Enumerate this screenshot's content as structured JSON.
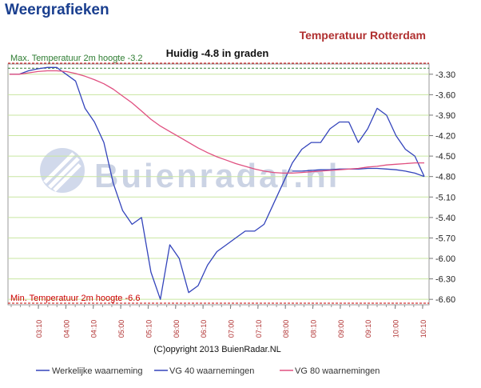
{
  "page": {
    "title": "Weergrafieken"
  },
  "chart_data": {
    "type": "line",
    "title": "Temperatuur Rotterdam",
    "subtitle": "Huidig -4.8 in graden",
    "watermark": "Buienradar.nl",
    "copyright": "(C)opyright 2013 BuienRadar.NL",
    "ylim": [
      -6.6,
      -3.3
    ],
    "yticks": [
      "-3.30",
      "-3.60",
      "-3.90",
      "-4.20",
      "-4.50",
      "-4.80",
      "-5.10",
      "-5.40",
      "-5.70",
      "-6.00",
      "-6.30",
      "-6.60"
    ],
    "xticks": [
      "03:10",
      "04:00",
      "04:10",
      "05:00",
      "05:10",
      "06:00",
      "06:10",
      "07:00",
      "07:10",
      "08:00",
      "08:10",
      "09:00",
      "09:10",
      "10:00",
      "10:10"
    ],
    "max_line": {
      "label": "Max. Temperatuur 2m hoogte -3.2",
      "value": -3.2,
      "color": "#2e7d32"
    },
    "min_line": {
      "label": "Min. Temperatuur 2m hoogte -6.6",
      "value": -6.6,
      "color": "#cc0000"
    },
    "grid": true,
    "legend_position": "bottom",
    "series": [
      {
        "name": "Werkelijke waarneming",
        "color": "#3344bb",
        "values": [
          -3.3,
          -3.3,
          -3.25,
          -3.22,
          -3.2,
          -3.2,
          -3.3,
          -3.4,
          -3.8,
          -4.0,
          -4.3,
          -4.9,
          -5.3,
          -5.5,
          -5.4,
          -6.2,
          -6.6,
          -5.8,
          -6.0,
          -6.5,
          -6.4,
          -6.1,
          -5.9,
          -5.8,
          -5.7,
          -5.6,
          -5.6,
          -5.5,
          -5.2,
          -4.9,
          -4.6,
          -4.4,
          -4.3,
          -4.3,
          -4.1,
          -4.0,
          -4.0,
          -4.3,
          -4.1,
          -3.8,
          -3.9,
          -4.2,
          -4.4,
          -4.5,
          -4.8
        ]
      },
      {
        "name": "VG 40 waarnemingen",
        "color": "#3344bb",
        "values": [
          null,
          null,
          null,
          null,
          null,
          null,
          null,
          null,
          null,
          null,
          null,
          null,
          null,
          null,
          null,
          null,
          null,
          null,
          null,
          null,
          null,
          null,
          null,
          null,
          null,
          null,
          null,
          null,
          null,
          null,
          -4.72,
          -4.72,
          -4.71,
          -4.7,
          -4.7,
          -4.69,
          -4.69,
          -4.69,
          -4.68,
          -4.68,
          -4.69,
          -4.7,
          -4.72,
          -4.75,
          -4.8
        ]
      },
      {
        "name": "VG 80 waarnemingen",
        "color": "#e05080",
        "values": [
          -3.3,
          -3.3,
          -3.28,
          -3.26,
          -3.25,
          -3.25,
          -3.26,
          -3.29,
          -3.33,
          -3.38,
          -3.44,
          -3.52,
          -3.62,
          -3.72,
          -3.84,
          -3.96,
          -4.06,
          -4.14,
          -4.22,
          -4.3,
          -4.38,
          -4.45,
          -4.51,
          -4.56,
          -4.61,
          -4.65,
          -4.69,
          -4.72,
          -4.74,
          -4.75,
          -4.75,
          -4.74,
          -4.73,
          -4.72,
          -4.71,
          -4.7,
          -4.69,
          -4.68,
          -4.66,
          -4.65,
          -4.63,
          -4.62,
          -4.61,
          -4.6,
          -4.6
        ]
      }
    ]
  }
}
